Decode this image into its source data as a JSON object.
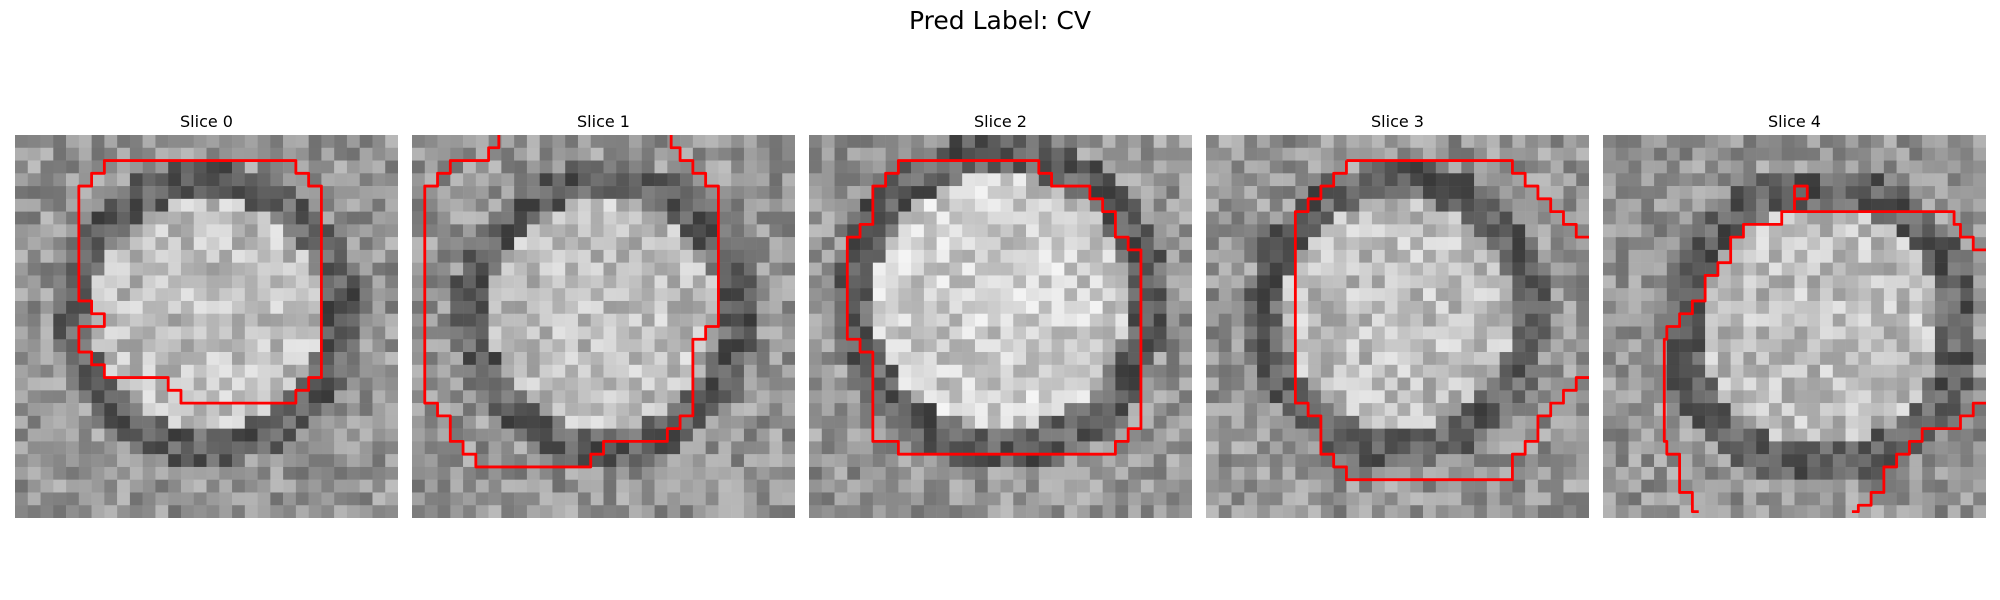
{
  "figure": {
    "title": "Pred Label: CV"
  },
  "panels": [
    {
      "title": "Slice 0",
      "contour_color": "#ff0000",
      "seed": 11,
      "shape": "disk-center"
    },
    {
      "title": "Slice 1",
      "contour_color": "#ff0000",
      "seed": 23,
      "shape": "disk-center"
    },
    {
      "title": "Slice 2",
      "contour_color": "#ff0000",
      "seed": 37,
      "shape": "disk-bright"
    },
    {
      "title": "Slice 3",
      "contour_color": "#ff0000",
      "seed": 41,
      "shape": "disk-center"
    },
    {
      "title": "Slice 4",
      "contour_color": "#ff0000",
      "seed": 53,
      "shape": "disk-offset"
    }
  ]
}
